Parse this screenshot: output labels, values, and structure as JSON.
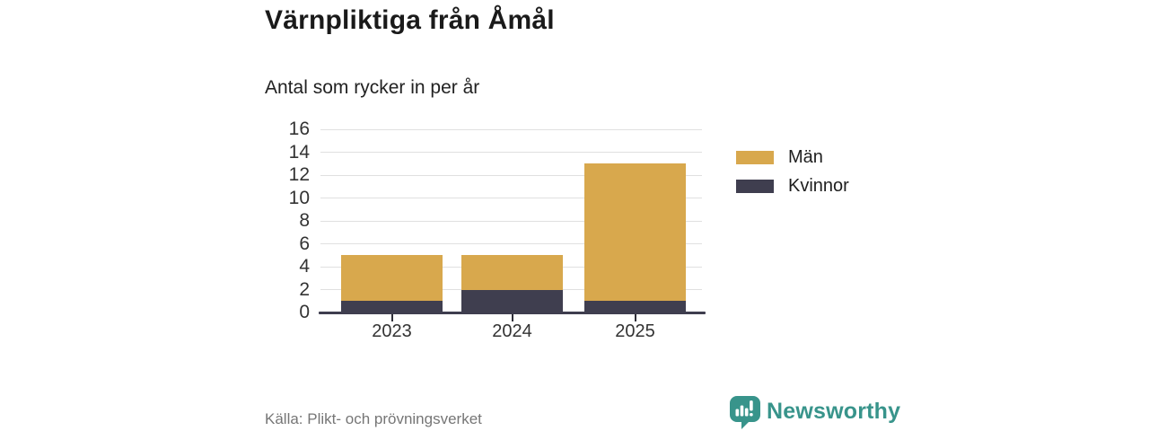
{
  "header": {
    "title": "Värnpliktiga från Åmål",
    "subtitle": "Antal som rycker in per år"
  },
  "chart_data": {
    "type": "bar",
    "stacked": true,
    "title": "Värnpliktiga från Åmål",
    "subtitle": "Antal som rycker in per år",
    "categories": [
      "2023",
      "2024",
      "2025"
    ],
    "series": [
      {
        "name": "Kvinnor",
        "values": [
          1,
          2,
          1
        ],
        "color": "#3f3e4f"
      },
      {
        "name": "Män",
        "values": [
          4,
          3,
          12
        ],
        "color": "#d8a84d"
      }
    ],
    "stack_order": "bottom-to-top",
    "totals": [
      5,
      5,
      13
    ],
    "xlabel": "",
    "ylabel": "",
    "ylim": [
      0,
      16
    ],
    "yticks": [
      0,
      2,
      4,
      6,
      8,
      10,
      12,
      14,
      16
    ],
    "grid": true,
    "gridline_color": "#e0e0e0",
    "axis_line_color": "#3f3e4f",
    "legend_position": "right"
  },
  "legend": {
    "items": [
      {
        "label": "Män",
        "color": "#d8a84d"
      },
      {
        "label": "Kvinnor",
        "color": "#3f3e4f"
      }
    ]
  },
  "footer": {
    "source": "Källa: Plikt- och prövningsverket"
  },
  "brand": {
    "name": "Newsworthy",
    "color": "#38948b",
    "icon": "bar-chart-speech-bubble-icon"
  }
}
